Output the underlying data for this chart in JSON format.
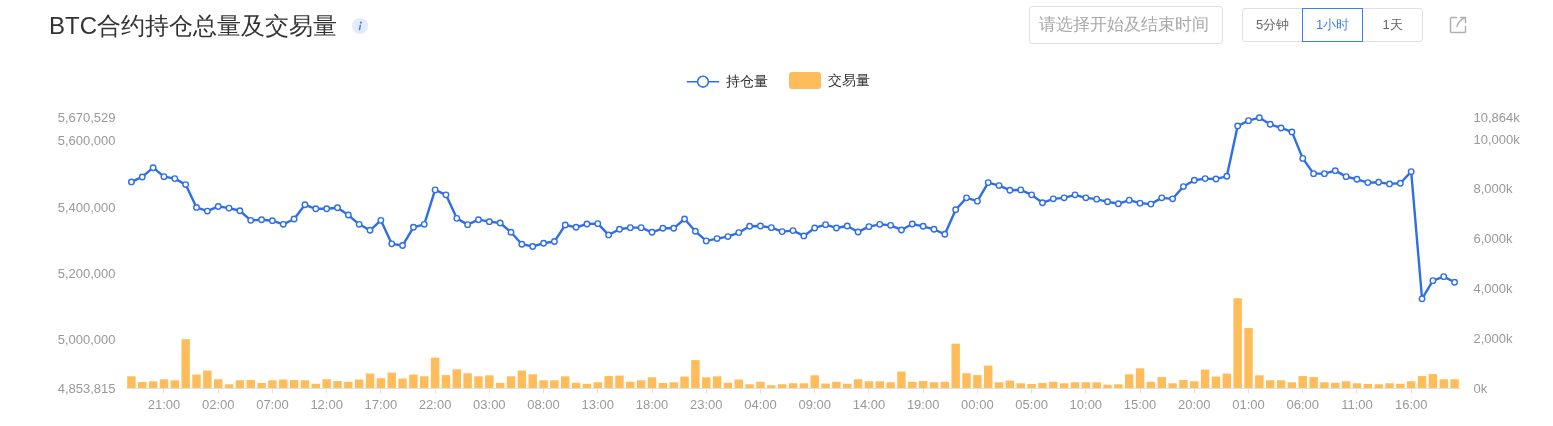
{
  "chart_data": {
    "type": "line",
    "title": "BTC合约持仓总量及交易量",
    "annotations": [
      "请选择开始及结束时间",
      "5分钟",
      "1小时",
      "1天"
    ],
    "categories": [
      null,
      null,
      null,
      "21:00",
      null,
      null,
      null,
      null,
      "02:00",
      null,
      null,
      null,
      null,
      "07:00",
      null,
      null,
      null,
      null,
      "12:00",
      null,
      null,
      null,
      null,
      "17:00",
      null,
      null,
      null,
      null,
      "22:00",
      null,
      null,
      null,
      null,
      "03:00",
      null,
      null,
      null,
      null,
      "08:00",
      null,
      null,
      null,
      null,
      "13:00",
      null,
      null,
      null,
      null,
      "18:00",
      null,
      null,
      null,
      null,
      "23:00",
      null,
      null,
      null,
      null,
      "04:00",
      null,
      null,
      null,
      null,
      "09:00",
      null,
      null,
      null,
      null,
      "14:00",
      null,
      null,
      null,
      null,
      "19:00",
      null,
      null,
      null,
      null,
      "00:00",
      null,
      null,
      null,
      null,
      "05:00",
      null,
      null,
      null,
      null,
      "10:00",
      null,
      null,
      null,
      null,
      "15:00",
      null,
      null,
      null,
      null,
      "20:00",
      null,
      null,
      null,
      null,
      "01:00",
      null,
      null,
      null,
      null,
      "06:00",
      null,
      null,
      null,
      null,
      "11:00",
      null,
      null,
      null,
      null,
      "16:00",
      null,
      null,
      null,
      null
    ],
    "series": [
      {
        "name": "持仓量",
        "color": "#2f6fe6",
        "values": [
          5476000,
          5491000,
          5519000,
          5492000,
          5486000,
          5468000,
          5399000,
          5388000,
          5402000,
          5397000,
          5389000,
          5360000,
          5362000,
          5359000,
          5348000,
          5364000,
          5407000,
          5395000,
          5395000,
          5398000,
          5376000,
          5348000,
          5330000,
          5360000,
          5289000,
          5284000,
          5339000,
          5348000,
          5452000,
          5437000,
          5366000,
          5347000,
          5362000,
          5356000,
          5352000,
          5324000,
          5288000,
          5281000,
          5291000,
          5296000,
          5346000,
          5339000,
          5349000,
          5350000,
          5316000,
          5333000,
          5338000,
          5338000,
          5324000,
          5336000,
          5336000,
          5364000,
          5327000,
          5298000,
          5305000,
          5311000,
          5323000,
          5342000,
          5343000,
          5338000,
          5326000,
          5329000,
          5313000,
          5337000,
          5347000,
          5337000,
          5343000,
          5325000,
          5341000,
          5348000,
          5345000,
          5331000,
          5349000,
          5342000,
          5333000,
          5318000,
          5392000,
          5428000,
          5418000,
          5474000,
          5465000,
          5451000,
          5452000,
          5437000,
          5413000,
          5425000,
          5428000,
          5437000,
          5428000,
          5424000,
          5416000,
          5410000,
          5421000,
          5412000,
          5409000,
          5428000,
          5425000,
          5462000,
          5481000,
          5486000,
          5485000,
          5493000,
          5645000,
          5661000,
          5670000,
          5650000,
          5639000,
          5627000,
          5547000,
          5501000,
          5501000,
          5510000,
          5492000,
          5484000,
          5474000,
          5475000,
          5470000,
          5472000,
          5507000,
          5123000,
          5178000,
          5190000,
          5173000
        ]
      },
      {
        "name": "交易量",
        "type": "bar",
        "axis": "y2",
        "color": "#ffbc5a",
        "values": [
          470,
          240,
          270,
          350,
          310,
          1960,
          540,
          700,
          350,
          150,
          310,
          320,
          200,
          310,
          340,
          320,
          310,
          170,
          350,
          280,
          250,
          340,
          580,
          390,
          620,
          380,
          540,
          470,
          1220,
          520,
          750,
          590,
          470,
          510,
          210,
          470,
          700,
          550,
          310,
          310,
          470,
          210,
          170,
          230,
          480,
          500,
          250,
          310,
          430,
          200,
          230,
          460,
          1120,
          430,
          470,
          210,
          340,
          150,
          250,
          110,
          150,
          190,
          190,
          510,
          180,
          250,
          170,
          350,
          270,
          270,
          230,
          660,
          250,
          280,
          230,
          250,
          1780,
          590,
          520,
          900,
          230,
          300,
          190,
          160,
          200,
          250,
          190,
          230,
          230,
          230,
          130,
          150,
          550,
          790,
          250,
          440,
          190,
          320,
          270,
          740,
          460,
          580,
          3600,
          2410,
          510,
          310,
          310,
          230,
          480,
          440,
          230,
          210,
          270,
          190,
          160,
          150,
          190,
          170,
          270,
          480,
          560,
          350,
          350
        ]
      }
    ],
    "ylim": [
      4853815,
      5670529
    ],
    "yticks": [
      {
        "value": 4853815,
        "label": "4,853,815"
      },
      {
        "value": 5000000,
        "label": "5,000,000"
      },
      {
        "value": 5200000,
        "label": "5,200,000"
      },
      {
        "value": 5400000,
        "label": "5,400,000"
      },
      {
        "value": 5600000,
        "label": "5,600,000"
      },
      {
        "value": 5670529,
        "label": "5,670,529"
      }
    ],
    "y2lim": [
      0,
      10864
    ],
    "y2ticks": [
      {
        "value": 0,
        "label": "0k"
      },
      {
        "value": 2000,
        "label": "2,000k"
      },
      {
        "value": 4000,
        "label": "4,000k"
      },
      {
        "value": 6000,
        "label": "6,000k"
      },
      {
        "value": 8000,
        "label": "8,000k"
      },
      {
        "value": 10000,
        "label": "10,000k"
      },
      {
        "value": 10864,
        "label": "10,864k"
      }
    ],
    "legend": "top",
    "marker": "circle"
  }
}
